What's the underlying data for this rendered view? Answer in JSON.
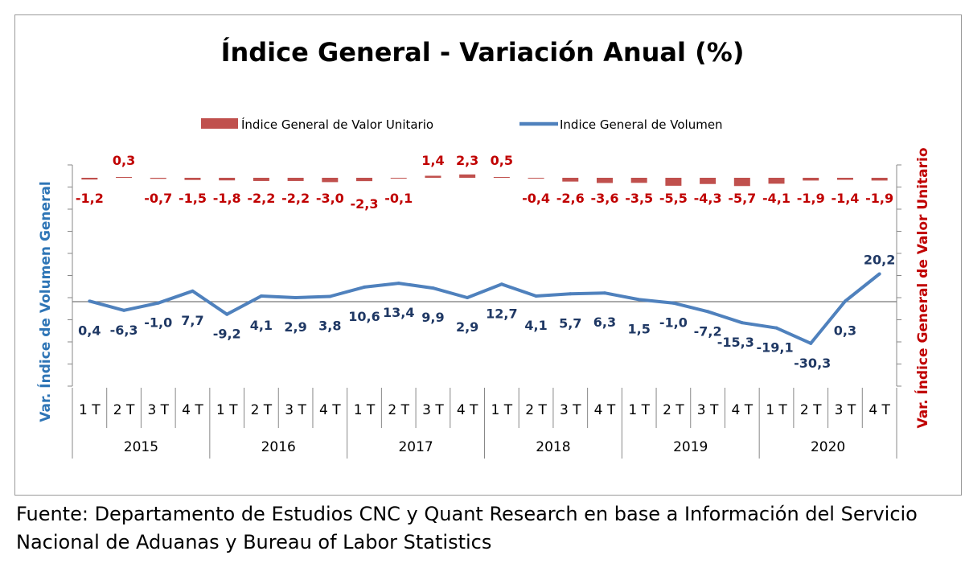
{
  "chart_data": {
    "type": "bar+line",
    "title": "Índice General - Variación Anual (%)",
    "legend": {
      "placement": "top-center",
      "items": [
        {
          "name": "Índice General de Valor Unitario",
          "type": "bar",
          "color": "#c0504d"
        },
        {
          "name": "Indice General de Volumen",
          "type": "line",
          "color": "#4f81bd"
        }
      ]
    },
    "ylabel_left": "Var. Índice de Volumen General",
    "ylabel_right": "Var. Índice General de Valor Unitario",
    "quarters": [
      "1 T",
      "2 T",
      "3 T",
      "4 T",
      "1 T",
      "2 T",
      "3 T",
      "4 T",
      "1 T",
      "2 T",
      "3 T",
      "4 T",
      "1 T",
      "2 T",
      "3 T",
      "4 T",
      "1 T",
      "2 T",
      "3 T",
      "4 T",
      "1 T",
      "2 T",
      "3 T",
      "4 T"
    ],
    "years": [
      "2015",
      "2016",
      "2017",
      "2018",
      "2019",
      "2020"
    ],
    "series": [
      {
        "name": "Índice General de Valor Unitario",
        "type": "bar",
        "values": [
          -1.2,
          0.3,
          -0.7,
          -1.5,
          -1.8,
          -2.2,
          -2.2,
          -3.0,
          -2.3,
          -0.1,
          1.4,
          2.3,
          0.5,
          -0.4,
          -2.6,
          -3.6,
          -3.5,
          -5.5,
          -4.3,
          -5.7,
          -4.1,
          -1.9,
          -1.4,
          -1.9
        ],
        "labels": [
          "-1,2",
          "0,3",
          "-0,7",
          "-1,5",
          "-1,8",
          "-2,2",
          "-2,2",
          "-3,0",
          "-2,3",
          "-0,1",
          "1,4",
          "2,3",
          "0,5",
          "-0,4",
          "-2,6",
          "-3,6",
          "-3,5",
          "-5,5",
          "-4,3",
          "-5,7",
          "-4,1",
          "-1,9",
          "-1,4",
          "-1,9"
        ],
        "color": "#c0504d"
      },
      {
        "name": "Indice General de Volumen",
        "type": "line",
        "values": [
          0.4,
          -6.3,
          -1.0,
          7.7,
          -9.2,
          4.1,
          2.9,
          3.8,
          10.6,
          13.4,
          9.9,
          2.9,
          12.7,
          4.1,
          5.7,
          6.3,
          1.5,
          -1.0,
          -7.2,
          -15.3,
          -19.1,
          -30.3,
          0.3,
          20.2
        ],
        "labels": [
          "0,4",
          "-6,3",
          "-1,0",
          "7,7",
          "-9,2",
          "4,1",
          "2,9",
          "3,8",
          "10,6",
          "13,4",
          "9,9",
          "2,9",
          "12,7",
          "4,1",
          "5,7",
          "6,3",
          "1,5",
          "-1,0",
          "-7,2",
          "-15,3",
          "-19,1",
          "-30,3",
          "0,3",
          "20,2"
        ],
        "color": "#4f81bd"
      }
    ]
  },
  "source_note": {
    "line1": "Fuente: Departamento de Estudios CNC y Quant Research en base a Información del Servicio",
    "line2": "Nacional de Aduanas y Bureau of Labor Statistics"
  }
}
